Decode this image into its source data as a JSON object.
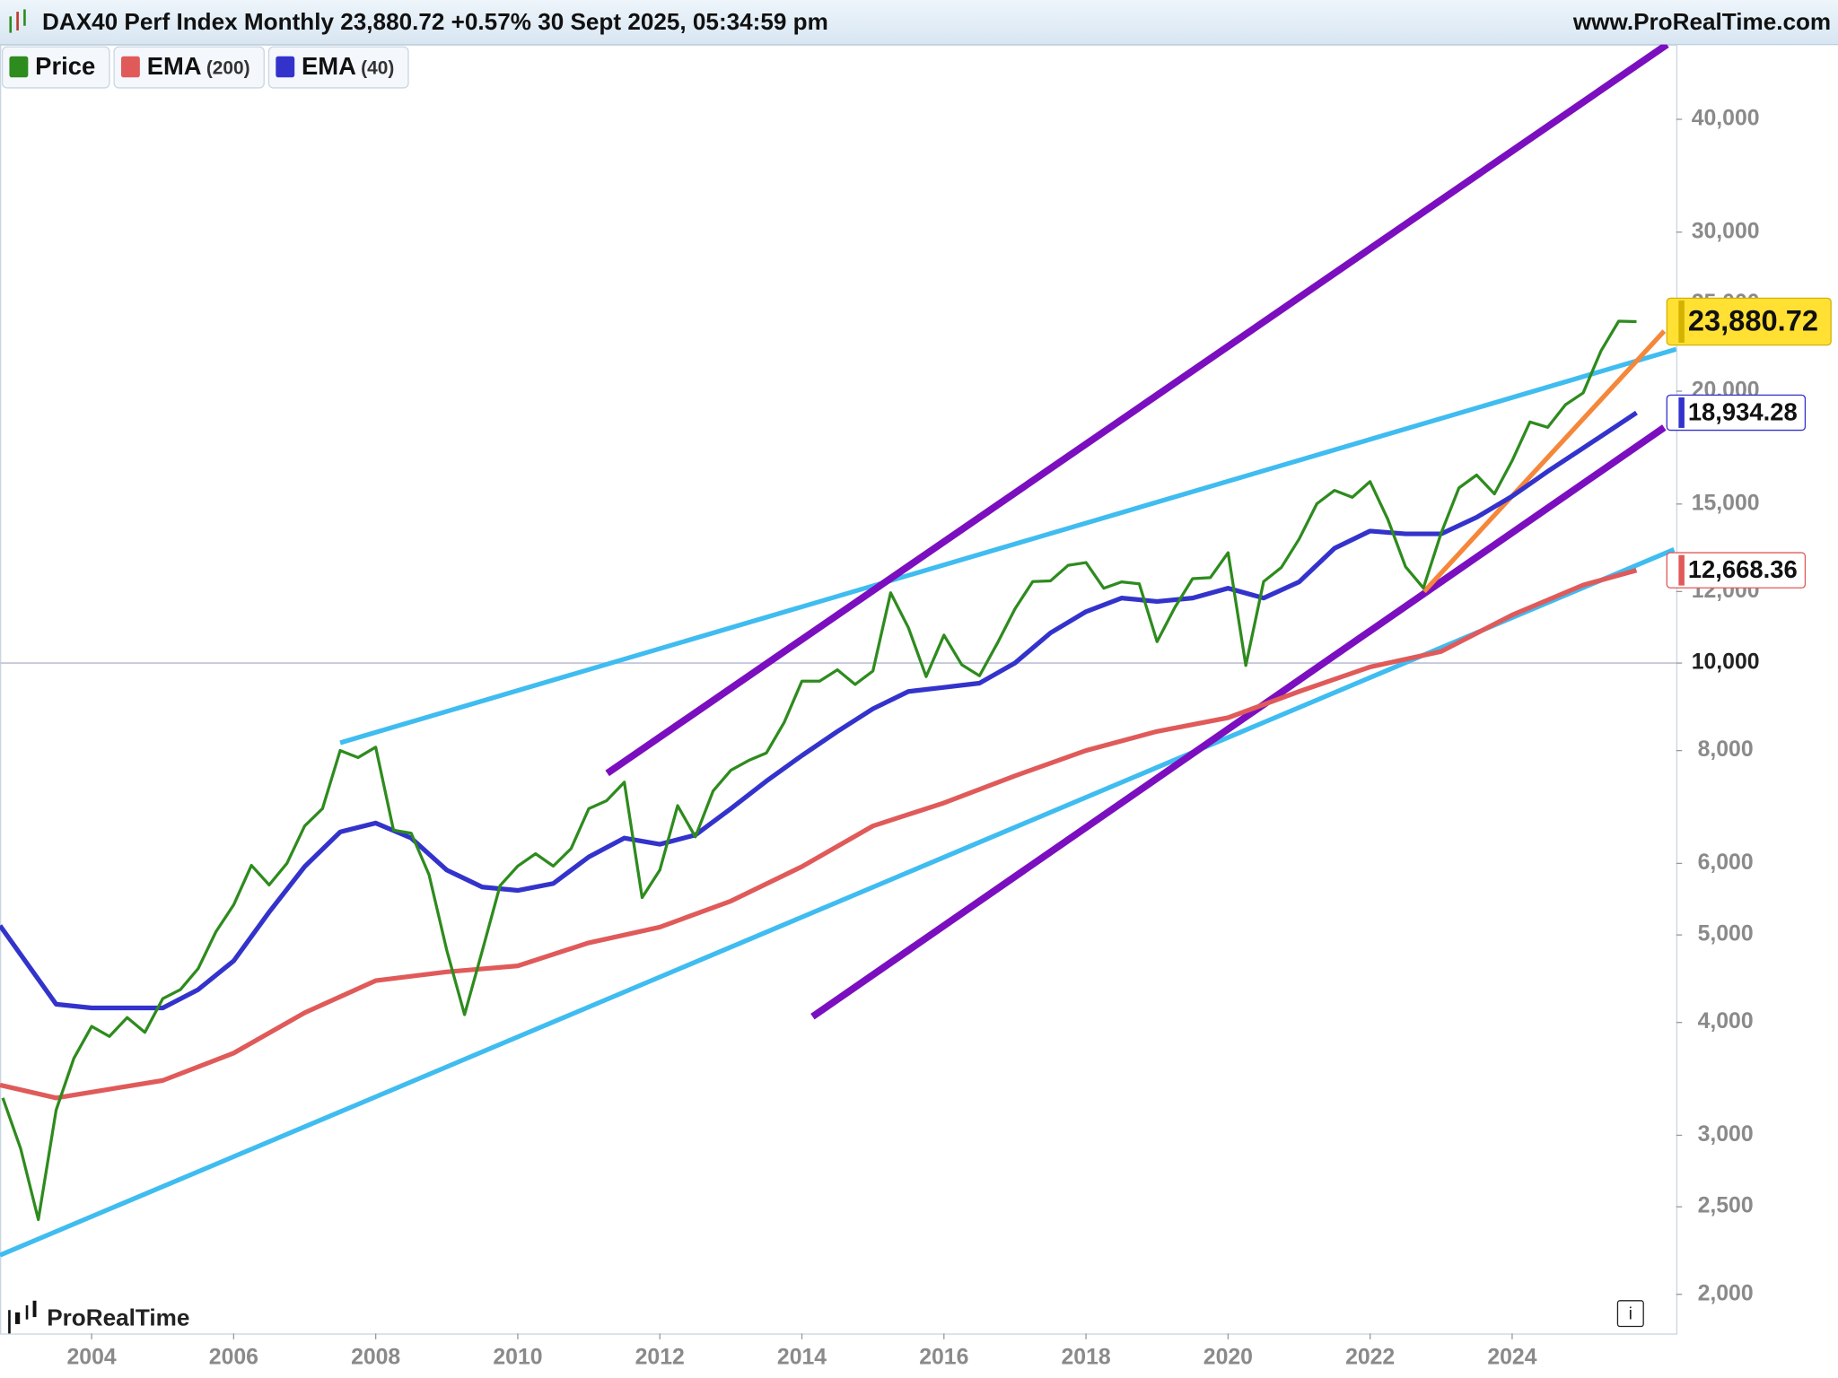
{
  "chart_data": {
    "type": "line",
    "title": "DAX40 Perf Index Monthly 23,880.72 +0.57% 30 Sept 2025, 05:34:59 pm",
    "site": "www.ProRealTime.com",
    "brand": "ProRealTime",
    "info": "i",
    "log_scale": true,
    "xlim": [
      2002.71,
      2026.31
    ],
    "ylim": [
      1810,
      48400
    ],
    "xticks": [
      2004,
      2006,
      2008,
      2010,
      2012,
      2014,
      2016,
      2018,
      2020,
      2022,
      2024
    ],
    "yticks": [
      {
        "value": 2000,
        "label": "2,000"
      },
      {
        "value": 2500,
        "label": "2,500"
      },
      {
        "value": 3000,
        "label": "3,000"
      },
      {
        "value": 4000,
        "label": "4,000"
      },
      {
        "value": 5000,
        "label": "5,000"
      },
      {
        "value": 6000,
        "label": "6,000"
      },
      {
        "value": 8000,
        "label": "8,000"
      },
      {
        "value": 10000,
        "label": "10,000"
      },
      {
        "value": 12000,
        "label": "12,000"
      },
      {
        "value": 15000,
        "label": "15,000"
      },
      {
        "value": 20000,
        "label": "20,000"
      },
      {
        "value": 25000,
        "label": "25,000"
      },
      {
        "value": 30000,
        "label": "30,000"
      },
      {
        "value": 40000,
        "label": "40,000"
      }
    ],
    "highlight_tick": 10000,
    "series": [
      {
        "name": "Price",
        "color": "#2e8b1e",
        "label_fill": "#ffe033",
        "label_edge": "#d4b300",
        "x": [
          2002.75,
          2003,
          2003.25,
          2003.5,
          2003.75,
          2004,
          2004.25,
          2004.5,
          2004.75,
          2005,
          2005.25,
          2005.5,
          2005.75,
          2006,
          2006.25,
          2006.5,
          2006.75,
          2007,
          2007.25,
          2007.5,
          2007.75,
          2008,
          2008.25,
          2008.5,
          2008.75,
          2009,
          2009.25,
          2009.5,
          2009.75,
          2010,
          2010.25,
          2010.5,
          2010.75,
          2011,
          2011.25,
          2011.5,
          2011.75,
          2012,
          2012.25,
          2012.5,
          2012.75,
          2013,
          2013.25,
          2013.5,
          2013.75,
          2014,
          2014.25,
          2014.5,
          2014.75,
          2015,
          2015.25,
          2015.5,
          2015.75,
          2016,
          2016.25,
          2016.5,
          2016.75,
          2017,
          2017.25,
          2017.5,
          2017.75,
          2018,
          2018.25,
          2018.5,
          2018.75,
          2019,
          2019.25,
          2019.5,
          2019.75,
          2020,
          2020.25,
          2020.5,
          2020.75,
          2021,
          2021.25,
          2021.5,
          2021.75,
          2022,
          2022.25,
          2022.5,
          2022.75,
          2023,
          2023.25,
          2023.5,
          2023.75,
          2024,
          2024.25,
          2024.5,
          2024.75,
          2025,
          2025.25,
          2025.5,
          2025.75
        ],
        "values": [
          3300,
          2900,
          2420,
          3200,
          3650,
          3960,
          3860,
          4050,
          3900,
          4250,
          4350,
          4590,
          5040,
          5400,
          5970,
          5680,
          6000,
          6600,
          6900,
          8000,
          7860,
          8070,
          6530,
          6480,
          5830,
          4810,
          4080,
          4800,
          5670,
          5960,
          6150,
          5960,
          6230,
          6900,
          7040,
          7380,
          5500,
          5900,
          6950,
          6420,
          7220,
          7610,
          7800,
          7950,
          8590,
          9550,
          9550,
          9830,
          9470,
          9800,
          11960,
          10940,
          9660,
          10740,
          9960,
          9680,
          10510,
          11480,
          12310,
          12330,
          12830,
          12920,
          12100,
          12300,
          12240,
          10560,
          11520,
          12400,
          12430,
          13250,
          9940,
          12310,
          12760,
          13720,
          15010,
          15530,
          15260,
          15880,
          14420,
          12780,
          12110,
          13920,
          15630,
          16150,
          15390,
          16750,
          18490,
          18240,
          19320,
          19910,
          22160,
          23910,
          23880.72
        ],
        "last_label": "23,880.72"
      },
      {
        "name": "EMA",
        "param": "(200)",
        "color": "#e05a5a",
        "label_fill": "#fff",
        "label_edge": "#e05a5a",
        "x": [
          2002.71,
          2003.5,
          2005,
          2006,
          2007,
          2008,
          2009,
          2010,
          2011,
          2012,
          2013,
          2014,
          2015,
          2016,
          2017,
          2018,
          2019,
          2020,
          2021,
          2022,
          2023,
          2024,
          2025,
          2025.75
        ],
        "values": [
          3410,
          3300,
          3450,
          3700,
          4100,
          4450,
          4550,
          4620,
          4900,
          5100,
          5450,
          5950,
          6600,
          7000,
          7500,
          8000,
          8400,
          8700,
          9300,
          9900,
          10300,
          11300,
          12200,
          12668.36
        ],
        "last_label": "12,668.36"
      },
      {
        "name": "EMA",
        "param": "(40)",
        "color": "#3333cc",
        "label_fill": "#fff",
        "label_edge": "#3333cc",
        "x": [
          2002.71,
          2003.5,
          2004,
          2005,
          2005.5,
          2006,
          2006.5,
          2007,
          2007.5,
          2008,
          2008.5,
          2009,
          2009.5,
          2010,
          2010.5,
          2011,
          2011.5,
          2012,
          2012.5,
          2013,
          2013.5,
          2014,
          2014.5,
          2015,
          2015.5,
          2016,
          2016.5,
          2017,
          2017.5,
          2018,
          2018.5,
          2019,
          2019.5,
          2020,
          2020.5,
          2021,
          2021.5,
          2022,
          2022.5,
          2023,
          2023.5,
          2024,
          2024.5,
          2025,
          2025.75
        ],
        "values": [
          5120,
          4190,
          4150,
          4150,
          4350,
          4680,
          5300,
          5950,
          6500,
          6650,
          6400,
          5900,
          5650,
          5600,
          5700,
          6100,
          6400,
          6300,
          6450,
          6900,
          7400,
          7900,
          8400,
          8900,
          9300,
          9400,
          9500,
          10000,
          10800,
          11400,
          11800,
          11700,
          11800,
          12100,
          11800,
          12300,
          13400,
          14000,
          13900,
          13900,
          14500,
          15300,
          16300,
          17300,
          18934.28
        ],
        "last_label": "18,934.28"
      }
    ],
    "trendlines": [
      {
        "color": "#3fbcf0",
        "x": [
          2007.5,
          2026.31
        ],
        "values": [
          8160,
          22260
        ]
      },
      {
        "color": "#3fbcf0",
        "x": [
          2002.71,
          2026.28
        ],
        "values": [
          2210,
          13360
        ]
      },
      {
        "color": "#7b0fbf",
        "x": [
          2011.26,
          2026.18
        ],
        "values": [
          7550,
          48400
        ]
      },
      {
        "color": "#7b0fbf",
        "x": [
          2014.15,
          2026.14
        ],
        "values": [
          4060,
          18230
        ]
      },
      {
        "color": "#f5873a",
        "x": [
          2022.76,
          2026.14
        ],
        "values": [
          12000,
          23310
        ]
      }
    ]
  }
}
